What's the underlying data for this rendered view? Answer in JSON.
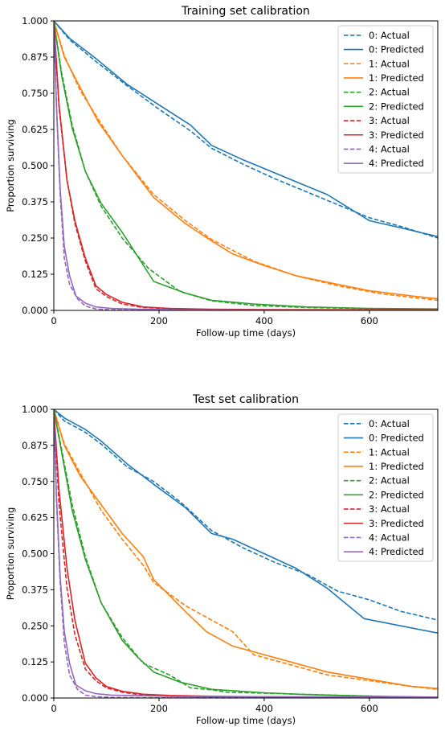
{
  "chart_data": [
    {
      "type": "line",
      "title": "Training set calibration",
      "xlabel": "Follow-up time (days)",
      "ylabel": "Proportion surviving",
      "xlim": [
        0,
        730
      ],
      "ylim": [
        0,
        1
      ],
      "xticks": [
        "0",
        "200",
        "400",
        "600"
      ],
      "yticks": [
        "0.000",
        "0.125",
        "0.250",
        "0.375",
        "0.500",
        "0.625",
        "0.750",
        "0.875",
        "1.000"
      ],
      "grid": false,
      "legend_position": "top-right",
      "series": [
        {
          "name": "0: Actual",
          "color": "#1f77b4",
          "style": "dashed",
          "x": [
            0,
            30,
            80,
            140,
            200,
            260,
            300,
            360,
            420,
            480,
            540,
            600,
            660,
            730
          ],
          "y": [
            1.0,
            0.935,
            0.86,
            0.775,
            0.695,
            0.62,
            0.56,
            0.505,
            0.455,
            0.41,
            0.365,
            0.32,
            0.29,
            0.25
          ]
        },
        {
          "name": "0: Predicted",
          "color": "#1f77b4",
          "style": "solid",
          "x": [
            0,
            30,
            80,
            140,
            200,
            260,
            300,
            360,
            420,
            480,
            520,
            600,
            660,
            730
          ],
          "y": [
            1.0,
            0.94,
            0.87,
            0.78,
            0.71,
            0.64,
            0.57,
            0.52,
            0.475,
            0.43,
            0.4,
            0.31,
            0.285,
            0.255
          ]
        },
        {
          "name": "1: Actual",
          "color": "#ff7f0e",
          "style": "dashed",
          "x": [
            0,
            20,
            50,
            90,
            130,
            190,
            250,
            300,
            380,
            460,
            540,
            620,
            680,
            730
          ],
          "y": [
            1.0,
            0.88,
            0.76,
            0.645,
            0.535,
            0.4,
            0.31,
            0.245,
            0.17,
            0.12,
            0.085,
            0.058,
            0.045,
            0.035
          ]
        },
        {
          "name": "1: Predicted",
          "color": "#ff7f0e",
          "style": "solid",
          "x": [
            0,
            20,
            50,
            85,
            130,
            190,
            250,
            300,
            340,
            400,
            460,
            540,
            600,
            680,
            730
          ],
          "y": [
            1.0,
            0.875,
            0.77,
            0.65,
            0.535,
            0.39,
            0.3,
            0.24,
            0.195,
            0.155,
            0.12,
            0.09,
            0.068,
            0.05,
            0.04
          ]
        },
        {
          "name": "2: Actual",
          "color": "#2ca02c",
          "style": "dashed",
          "x": [
            0,
            15,
            35,
            60,
            90,
            130,
            180,
            240,
            300,
            380,
            480,
            600,
            730
          ],
          "y": [
            1.0,
            0.82,
            0.64,
            0.48,
            0.36,
            0.25,
            0.145,
            0.065,
            0.033,
            0.017,
            0.01,
            0.006,
            0.004
          ]
        },
        {
          "name": "2: Predicted",
          "color": "#2ca02c",
          "style": "solid",
          "x": [
            0,
            15,
            35,
            60,
            90,
            130,
            190,
            250,
            300,
            380,
            480,
            600,
            730
          ],
          "y": [
            1.0,
            0.81,
            0.63,
            0.48,
            0.37,
            0.27,
            0.1,
            0.06,
            0.035,
            0.022,
            0.012,
            0.007,
            0.005
          ]
        },
        {
          "name": "3: Actual",
          "color": "#d62728",
          "style": "dashed",
          "x": [
            0,
            10,
            25,
            40,
            60,
            80,
            100,
            130,
            170,
            220,
            300,
            400,
            730
          ],
          "y": [
            1.0,
            0.7,
            0.45,
            0.3,
            0.17,
            0.075,
            0.048,
            0.022,
            0.01,
            0.006,
            0.003,
            0.002,
            0.001
          ]
        },
        {
          "name": "3: Predicted",
          "color": "#d62728",
          "style": "solid",
          "x": [
            0,
            10,
            25,
            40,
            60,
            80,
            100,
            130,
            170,
            220,
            300,
            400,
            730
          ],
          "y": [
            1.0,
            0.71,
            0.45,
            0.31,
            0.18,
            0.085,
            0.055,
            0.028,
            0.012,
            0.007,
            0.004,
            0.003,
            0.002
          ]
        },
        {
          "name": "4: Actual",
          "color": "#9467bd",
          "style": "dashed",
          "x": [
            0,
            5,
            12,
            20,
            30,
            45,
            60,
            80,
            110,
            160,
            250,
            730
          ],
          "y": [
            1.0,
            0.7,
            0.4,
            0.18,
            0.09,
            0.04,
            0.015,
            0.005,
            0.002,
            0.001,
            0.0,
            0.0
          ]
        },
        {
          "name": "4: Predicted",
          "color": "#9467bd",
          "style": "solid",
          "x": [
            0,
            5,
            12,
            20,
            30,
            42,
            60,
            80,
            110,
            160,
            250,
            730
          ],
          "y": [
            1.0,
            0.71,
            0.42,
            0.22,
            0.12,
            0.05,
            0.025,
            0.012,
            0.007,
            0.004,
            0.002,
            0.0
          ]
        }
      ]
    },
    {
      "type": "line",
      "title": "Test set calibration",
      "xlabel": "Follow-up time (days)",
      "ylabel": "Proportion surviving",
      "xlim": [
        0,
        730
      ],
      "ylim": [
        0,
        1
      ],
      "xticks": [
        "0",
        "200",
        "400",
        "600"
      ],
      "yticks": [
        "0.000",
        "0.125",
        "0.250",
        "0.375",
        "0.500",
        "0.625",
        "0.750",
        "0.875",
        "1.000"
      ],
      "grid": false,
      "legend_position": "top-right",
      "series": [
        {
          "name": "0: Actual",
          "color": "#1f77b4",
          "style": "dashed",
          "x": [
            0,
            20,
            60,
            90,
            140,
            190,
            240,
            300,
            360,
            420,
            480,
            540,
            600,
            660,
            730
          ],
          "y": [
            1.0,
            0.96,
            0.92,
            0.88,
            0.8,
            0.75,
            0.68,
            0.58,
            0.52,
            0.47,
            0.43,
            0.37,
            0.34,
            0.3,
            0.27
          ]
        },
        {
          "name": "0: Predicted",
          "color": "#1f77b4",
          "style": "solid",
          "x": [
            0,
            20,
            60,
            90,
            140,
            190,
            250,
            300,
            340,
            400,
            460,
            520,
            590,
            660,
            730
          ],
          "y": [
            1.0,
            0.97,
            0.93,
            0.89,
            0.81,
            0.74,
            0.66,
            0.57,
            0.55,
            0.5,
            0.45,
            0.38,
            0.275,
            0.25,
            0.225
          ]
        },
        {
          "name": "1: Actual",
          "color": "#ff7f0e",
          "style": "dashed",
          "x": [
            0,
            20,
            50,
            90,
            130,
            170,
            190,
            250,
            300,
            340,
            380,
            440,
            520,
            600,
            680,
            730
          ],
          "y": [
            1.0,
            0.88,
            0.78,
            0.65,
            0.55,
            0.46,
            0.4,
            0.32,
            0.27,
            0.23,
            0.15,
            0.12,
            0.08,
            0.06,
            0.04,
            0.03
          ]
        },
        {
          "name": "1: Predicted",
          "color": "#ff7f0e",
          "style": "solid",
          "x": [
            0,
            20,
            50,
            90,
            130,
            170,
            190,
            250,
            290,
            340,
            380,
            440,
            520,
            600,
            680,
            730
          ],
          "y": [
            1.0,
            0.875,
            0.77,
            0.67,
            0.57,
            0.49,
            0.41,
            0.3,
            0.23,
            0.18,
            0.16,
            0.13,
            0.09,
            0.065,
            0.04,
            0.033
          ]
        },
        {
          "name": "2: Actual",
          "color": "#2ca02c",
          "style": "dashed",
          "x": [
            0,
            15,
            35,
            60,
            90,
            130,
            170,
            220,
            260,
            300,
            330,
            730
          ],
          "y": [
            1.0,
            0.86,
            0.67,
            0.49,
            0.33,
            0.21,
            0.12,
            0.08,
            0.035,
            0.028,
            0.02,
            0.0
          ]
        },
        {
          "name": "2: Predicted",
          "color": "#2ca02c",
          "style": "solid",
          "x": [
            0,
            15,
            35,
            60,
            90,
            130,
            160,
            190,
            240,
            300,
            400,
            480,
            560,
            640,
            730
          ],
          "y": [
            1.0,
            0.85,
            0.65,
            0.48,
            0.33,
            0.2,
            0.14,
            0.09,
            0.055,
            0.03,
            0.018,
            0.012,
            0.008,
            0.005,
            0.003
          ]
        },
        {
          "name": "3: Actual",
          "color": "#d62728",
          "style": "dashed",
          "x": [
            0,
            10,
            25,
            40,
            60,
            80,
            100,
            130,
            170,
            220,
            300,
            400,
            730
          ],
          "y": [
            1.0,
            0.67,
            0.38,
            0.22,
            0.1,
            0.06,
            0.035,
            0.02,
            0.01,
            0.005,
            0.003,
            0.002,
            0.001
          ]
        },
        {
          "name": "3: Predicted",
          "color": "#d62728",
          "style": "solid",
          "x": [
            0,
            10,
            25,
            40,
            60,
            80,
            100,
            130,
            170,
            220,
            300,
            400,
            730
          ],
          "y": [
            1.0,
            0.72,
            0.45,
            0.27,
            0.12,
            0.07,
            0.04,
            0.023,
            0.013,
            0.009,
            0.006,
            0.004,
            0.003
          ]
        },
        {
          "name": "4: Actual",
          "color": "#9467bd",
          "style": "dashed",
          "x": [
            0,
            5,
            12,
            20,
            30,
            45,
            60,
            80,
            110,
            160,
            250,
            730
          ],
          "y": [
            1.0,
            0.68,
            0.4,
            0.19,
            0.08,
            0.03,
            0.01,
            0.005,
            0.002,
            0.001,
            0.0,
            0.0
          ]
        },
        {
          "name": "4: Predicted",
          "color": "#9467bd",
          "style": "solid",
          "x": [
            0,
            5,
            12,
            20,
            30,
            42,
            60,
            80,
            110,
            160,
            250,
            730
          ],
          "y": [
            1.0,
            0.7,
            0.42,
            0.23,
            0.12,
            0.045,
            0.025,
            0.015,
            0.01,
            0.008,
            0.005,
            0.003
          ]
        }
      ]
    }
  ]
}
